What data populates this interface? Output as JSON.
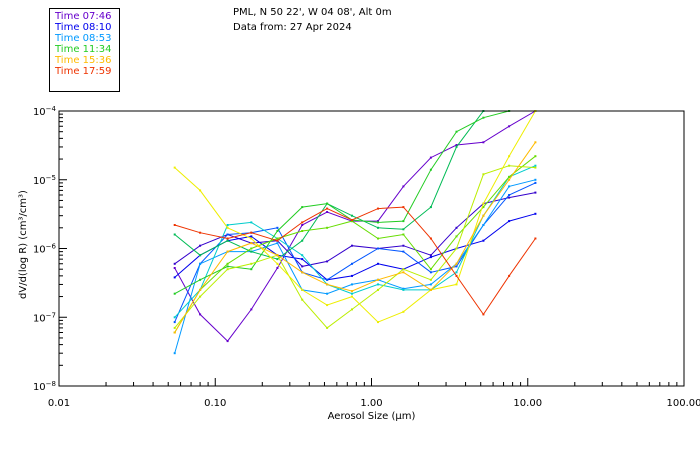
{
  "header": {
    "location": "PML, N 50 22', W 04 08', Alt 0m",
    "date_line": "Data from: 27 Apr 2024"
  },
  "chart_data": {
    "type": "line",
    "x_scale": "log",
    "y_scale": "log",
    "xlim": [
      0.01,
      100
    ],
    "ylim": [
      1e-08,
      0.0001
    ],
    "xlabel": "Aerosol Size (μm)",
    "ylabel": "dV/d(log R) (cm³/cm³)",
    "x_ticks": [
      {
        "value": 0.01,
        "label": "0.01"
      },
      {
        "value": 0.1,
        "label": "0.10"
      },
      {
        "value": 1,
        "label": "1.00"
      },
      {
        "value": 10,
        "label": "10.00"
      },
      {
        "value": 100,
        "label": "100.00"
      }
    ],
    "y_ticks": [
      {
        "value": 1e-08,
        "base": "10",
        "exp": "−8"
      },
      {
        "value": 1e-07,
        "base": "10",
        "exp": "−7"
      },
      {
        "value": 1e-06,
        "base": "10",
        "exp": "−6"
      },
      {
        "value": 1e-05,
        "base": "10",
        "exp": "−5"
      },
      {
        "value": 0.0001,
        "base": "10",
        "exp": "−4"
      }
    ],
    "x": [
      0.055,
      0.08,
      0.12,
      0.17,
      0.25,
      0.36,
      0.52,
      0.75,
      1.1,
      1.6,
      2.4,
      3.5,
      5.2,
      7.6,
      11.2
    ],
    "series": [
      {
        "name": "Time 07:46",
        "color": "#6600cc",
        "values": [
          5.2e-07,
          1.1e-07,
          4.5e-08,
          1.3e-07,
          5.2e-07,
          2.2e-06,
          3.4e-06,
          2.5e-06,
          2.5e-06,
          8e-06,
          2.1e-05,
          3.2e-05,
          3.5e-05,
          6e-05,
          0.0001
        ]
      },
      {
        "name": "Time 07:46",
        "color": "#3300cc",
        "values": [
          6e-07,
          1.1e-06,
          1.6e-06,
          1.2e-06,
          1.3e-06,
          5.5e-07,
          6.5e-07,
          1.1e-06,
          1e-06,
          1.1e-06,
          8e-07,
          2e-06,
          4.5e-06,
          5.5e-06,
          6.5e-06
        ]
      },
      {
        "name": "Time 08:10",
        "color": "#0000ee",
        "values": [
          3.8e-07,
          8e-07,
          1.3e-06,
          1.5e-06,
          8e-07,
          7e-07,
          3.5e-07,
          4e-07,
          6e-07,
          5e-07,
          7.5e-07,
          1e-06,
          1.3e-06,
          2.5e-06,
          3.2e-06
        ]
      },
      {
        "name": "Time 08:10",
        "color": "#0055ff",
        "values": [
          8.5e-08,
          6e-07,
          1.6e-06,
          1.7e-06,
          2e-06,
          4.5e-07,
          3.5e-07,
          6e-07,
          1e-06,
          9e-07,
          4.5e-07,
          5.5e-07,
          2.2e-06,
          6e-06,
          9e-06
        ]
      },
      {
        "name": "Time 08:53",
        "color": "#0099ff",
        "values": [
          3e-08,
          6e-07,
          9e-07,
          9e-07,
          1.2e-06,
          2.5e-07,
          2.2e-07,
          3e-07,
          3.5e-07,
          2.6e-07,
          3e-07,
          6e-07,
          2.2e-06,
          8e-06,
          1e-05
        ]
      },
      {
        "name": "Time 08:53",
        "color": "#00cccc",
        "values": [
          1e-07,
          2.5e-07,
          2.2e-06,
          2.4e-06,
          1.4e-06,
          8e-07,
          3e-07,
          2.2e-07,
          3e-07,
          2.5e-07,
          2.5e-07,
          4.5e-07,
          3e-06,
          1.1e-05,
          1.6e-05
        ]
      },
      {
        "name": "Time 11:34",
        "color": "#00bb55",
        "values": [
          1.6e-06,
          8e-07,
          1.3e-06,
          9e-07,
          7e-07,
          1.3e-06,
          4.5e-06,
          3e-06,
          2e-06,
          1.9e-06,
          4e-06,
          3e-05,
          0.0001,
          0.0001,
          0.0001
        ]
      },
      {
        "name": "Time 11:34",
        "color": "#22cc22",
        "values": [
          2.2e-07,
          3.5e-07,
          5.5e-07,
          5e-07,
          1.8e-06,
          4e-06,
          4.5e-06,
          2.6e-06,
          2.4e-06,
          2.5e-06,
          1.4e-05,
          5e-05,
          8e-05,
          0.0001,
          0.0001
        ]
      },
      {
        "name": "Time 11:34",
        "color": "#66dd00",
        "values": [
          6e-08,
          2.5e-07,
          6e-07,
          1e-06,
          1.4e-06,
          1.8e-06,
          2e-06,
          2.5e-06,
          1.4e-06,
          1.6e-06,
          5e-07,
          1.5e-06,
          4e-06,
          1.1e-05,
          2.2e-05
        ]
      },
      {
        "name": "Time 15:36",
        "color": "#bbee00",
        "values": [
          7e-08,
          2e-07,
          5e-07,
          6e-07,
          8e-07,
          1.8e-07,
          7e-08,
          1.3e-07,
          2.5e-07,
          5e-07,
          3.5e-07,
          1e-06,
          1.2e-05,
          1.6e-05,
          1.5e-05
        ]
      },
      {
        "name": "Time 15:36",
        "color": "#eeee00",
        "values": [
          1.5e-05,
          7e-06,
          2e-06,
          1.4e-06,
          6e-07,
          2.5e-07,
          1.5e-07,
          2e-07,
          8.5e-08,
          1.2e-07,
          2.5e-07,
          3e-07,
          4.5e-06,
          2.2e-05,
          0.0001
        ]
      },
      {
        "name": "Time 15:36",
        "color": "#ffbb00",
        "values": [
          6e-08,
          2.5e-07,
          9e-07,
          1.2e-06,
          8e-07,
          4.5e-07,
          3e-07,
          2.4e-07,
          3.5e-07,
          4.5e-07,
          2.5e-07,
          6e-07,
          3e-06,
          1e-05,
          3.5e-05
        ]
      },
      {
        "name": "Time 17:59",
        "color": "#ee3300",
        "values": [
          2.2e-06,
          1.7e-06,
          1.4e-06,
          1.7e-06,
          1.3e-06,
          2.4e-06,
          3.8e-06,
          2.6e-06,
          3.8e-06,
          4e-06,
          1.4e-06,
          4e-07,
          1.1e-07,
          4e-07,
          1.4e-06
        ]
      }
    ]
  },
  "legend": [
    {
      "label": "Time 07:46",
      "color": "#6600cc"
    },
    {
      "label": "Time 08:10",
      "color": "#0000ee"
    },
    {
      "label": "Time 08:53",
      "color": "#0099ff"
    },
    {
      "label": "Time 11:34",
      "color": "#22cc22"
    },
    {
      "label": "Time 15:36",
      "color": "#ffbb00"
    },
    {
      "label": "Time 17:59",
      "color": "#ee3300"
    }
  ]
}
